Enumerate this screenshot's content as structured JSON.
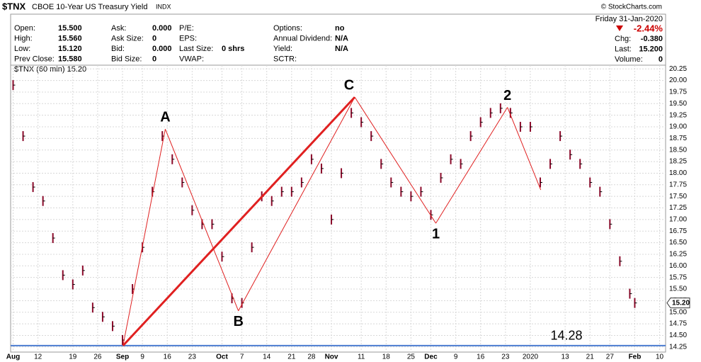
{
  "chart_data": {
    "type": "price",
    "symbol": "$TNX",
    "title": "CBOE 10-Year US Treasury Yield",
    "exchange": "INDX",
    "credit": "© StockCharts.com",
    "subtitle": "$TNX (60 min) 15.20",
    "date": "Friday 31-Jan-2020",
    "change_pct": "-2.44%",
    "info": [
      [
        [
          "Open:",
          "15.500"
        ],
        [
          "High:",
          "15.560"
        ],
        [
          "Low:",
          "15.120"
        ],
        [
          "Prev Close:",
          "15.580"
        ]
      ],
      [
        [
          "Ask:",
          "0.000"
        ],
        [
          "Ask Size:",
          "0"
        ],
        [
          "Bid:",
          "0.000"
        ],
        [
          "Bid Size:",
          "0"
        ]
      ],
      [
        [
          "P/E:"
        ],
        [
          "EPS:"
        ],
        [
          "Last Size:",
          "0 shrs"
        ],
        [
          "VWAP:"
        ]
      ],
      [
        [
          "Options:",
          "no"
        ],
        [
          "Annual Dividend:",
          "N/A"
        ],
        [
          "Yield:",
          "N/A"
        ],
        [
          "SCTR:"
        ]
      ],
      [
        [
          "Chg:",
          "-0.380"
        ],
        [
          "Last:",
          "15.200"
        ],
        [
          "Volume:",
          "0"
        ]
      ]
    ],
    "color": "#8b0a2a",
    "x": [
      0,
      2,
      4,
      6,
      8,
      10,
      12,
      14,
      16,
      18,
      20,
      22,
      24,
      26,
      28,
      30,
      32,
      34,
      36,
      38,
      40,
      42,
      44,
      46,
      48,
      50,
      52,
      54,
      56,
      58,
      60,
      62,
      64,
      66,
      68,
      70,
      72,
      74,
      76,
      78,
      80,
      82,
      84,
      86,
      88,
      90,
      92,
      94,
      96,
      98,
      100,
      102,
      104,
      106,
      108,
      110,
      112,
      114,
      116,
      118,
      120,
      122,
      124,
      125
    ],
    "values": [
      19.9,
      18.8,
      17.7,
      17.4,
      16.6,
      15.8,
      15.6,
      15.9,
      15.1,
      14.9,
      14.7,
      14.4,
      15.5,
      16.4,
      17.6,
      18.8,
      18.3,
      17.8,
      17.2,
      16.9,
      16.9,
      16.2,
      15.3,
      15.2,
      16.4,
      17.5,
      17.4,
      17.6,
      17.6,
      17.8,
      18.3,
      18.1,
      17.0,
      18.0,
      19.3,
      19.1,
      18.8,
      18.2,
      17.8,
      17.6,
      17.5,
      17.6,
      17.1,
      17.9,
      18.3,
      18.2,
      18.8,
      19.1,
      19.3,
      19.4,
      19.3,
      19.0,
      19.0,
      17.8,
      18.2,
      18.8,
      18.4,
      18.2,
      17.8,
      17.6,
      16.9,
      16.1,
      15.4,
      15.2
    ],
    "pattern": [
      {
        "x": 22.1,
        "y": 14.28
      },
      {
        "label": "A",
        "x": 30.6,
        "y": 18.95
      },
      {
        "label": "B",
        "x": 45.3,
        "y": 15.03
      },
      {
        "label": "C",
        "x": 68.7,
        "y": 19.64
      },
      {
        "label": "1",
        "x": 85.0,
        "y": 16.92
      },
      {
        "label": "2",
        "x": 99.4,
        "y": 19.42
      },
      {
        "x": 106.1,
        "y": 17.64
      }
    ],
    "hline": 14.28,
    "price_tag": {
      "value": 15.2,
      "label": "15.20"
    },
    "xlim": [
      -0.5,
      131.2
    ],
    "ylim": [
      14.14,
      20.33
    ],
    "xticks": [
      {
        "value": 0,
        "label": "Aug"
      },
      {
        "value": 5,
        "label": "12"
      },
      {
        "value": 12,
        "label": "19"
      },
      {
        "value": 17,
        "label": "26"
      },
      {
        "value": 22,
        "label": "Sep"
      },
      {
        "value": 26,
        "label": "9"
      },
      {
        "value": 31,
        "label": "16"
      },
      {
        "value": 36,
        "label": "23"
      },
      {
        "value": 42,
        "label": "Oct"
      },
      {
        "value": 46,
        "label": "7"
      },
      {
        "value": 51,
        "label": "14"
      },
      {
        "value": 56,
        "label": "21"
      },
      {
        "value": 60,
        "label": "28"
      },
      {
        "value": 64,
        "label": "Nov"
      },
      {
        "value": 70,
        "label": "11"
      },
      {
        "value": 75,
        "label": "18"
      },
      {
        "value": 80,
        "label": "25"
      },
      {
        "value": 84,
        "label": "Dec"
      },
      {
        "value": 89,
        "label": "9"
      },
      {
        "value": 94,
        "label": "16"
      },
      {
        "value": 99,
        "label": "23"
      },
      {
        "value": 104,
        "label": "2020"
      },
      {
        "value": 111,
        "label": "13"
      },
      {
        "value": 116,
        "label": "21"
      },
      {
        "value": 120,
        "label": "27"
      },
      {
        "value": 125,
        "label": "Feb"
      },
      {
        "value": 130,
        "label": "10"
      }
    ],
    "yticks": [
      14.25,
      {
        "value": 14.5,
        "label": "14.50"
      },
      14.75,
      {
        "value": 15,
        "label": "15.00"
      },
      15.25,
      {
        "value": 15.5,
        "label": "15.50"
      },
      15.75,
      {
        "value": 16,
        "label": "16.00"
      },
      16.25,
      {
        "value": 16.5,
        "label": "16.50"
      },
      16.75,
      {
        "value": 17,
        "label": "17.00"
      },
      17.25,
      {
        "value": 17.5,
        "label": "17.50"
      },
      17.75,
      {
        "value": 18,
        "label": "18.00"
      },
      18.25,
      {
        "value": 18.5,
        "label": "18.50"
      },
      18.75,
      {
        "value": 19,
        "label": "19.00"
      },
      19.25,
      {
        "value": 19.5,
        "label": "19.50"
      },
      19.75,
      {
        "value": 20,
        "label": "20.00"
      },
      20.25
    ],
    "grid": true
  }
}
